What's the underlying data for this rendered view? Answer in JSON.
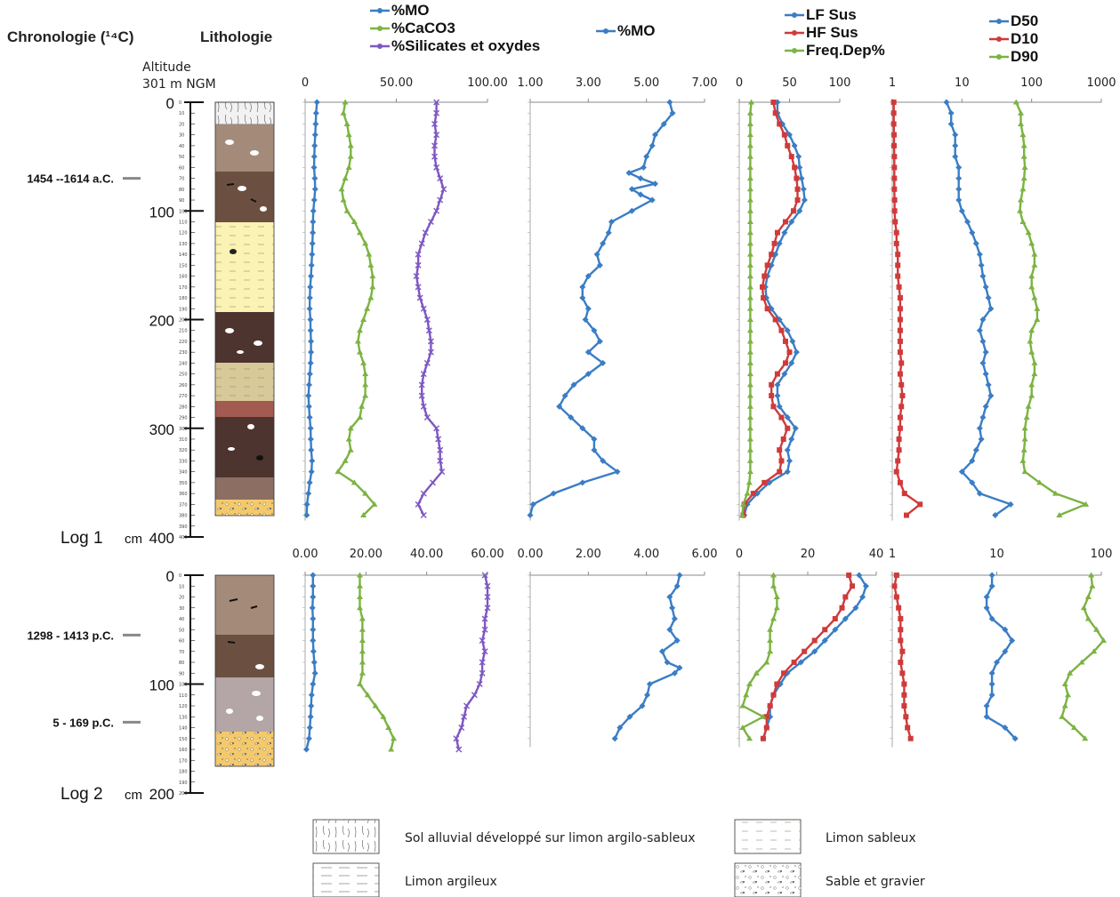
{
  "headers": {
    "chronology": "Chronologie (¹⁴C)",
    "lithology": "Lithologie",
    "altitude": "Altitude",
    "altitude_value": "301 m NGM"
  },
  "colors": {
    "blue": "#3a7dc4",
    "red": "#d03a3a",
    "green": "#7cb342",
    "purple": "#7e57c2"
  },
  "logs": [
    {
      "name": "Log 1",
      "unit": "cm",
      "max_depth": 400,
      "depth_ticks": [
        0,
        100,
        200,
        300,
        400
      ]
    },
    {
      "name": "Log 2",
      "unit": "cm",
      "max_depth": 200,
      "depth_ticks": [
        0,
        100,
        200
      ]
    }
  ],
  "dates": [
    {
      "label": "1454 --1614 a.C.",
      "log": 0,
      "depth": 70
    },
    {
      "label": "1298 - 1413 p.C.",
      "log": 1,
      "depth": 55
    },
    {
      "label": "5 - 169 p.C.",
      "log": 1,
      "depth": 135
    }
  ],
  "legend": [
    {
      "label": "Sol alluvial développé sur limon argilo-sableux",
      "pattern": "soil"
    },
    {
      "label": "Limon argileux",
      "pattern": "argileux"
    },
    {
      "label": "Limon sableux",
      "pattern": "sableux"
    },
    {
      "label": "Sable et gravier",
      "pattern": "gravier"
    }
  ],
  "chart_data": [
    {
      "type": "line",
      "log": 1,
      "panel": 1,
      "legend": [
        "%MO",
        "%CaCO3",
        "%Silicates et oxydes"
      ],
      "xlim": [
        0,
        100
      ],
      "ticks": [
        "0",
        "50.00",
        "100.00"
      ],
      "depth": [
        0,
        10,
        20,
        30,
        40,
        50,
        60,
        70,
        80,
        90,
        100,
        110,
        120,
        130,
        140,
        150,
        160,
        170,
        180,
        190,
        200,
        210,
        220,
        230,
        240,
        250,
        260,
        270,
        280,
        290,
        300,
        310,
        320,
        330,
        340,
        350,
        360,
        370,
        380
      ],
      "series": [
        {
          "name": "%MO",
          "color": "#3a7dc4",
          "values": [
            6.5,
            6,
            5.8,
            5.5,
            5.2,
            5,
            4.9,
            5.3,
            5.5,
            5,
            4.5,
            4.3,
            4.2,
            4,
            3.8,
            3.5,
            3.2,
            2.8,
            2.6,
            2.5,
            2.9,
            3,
            3.2,
            3.2,
            3,
            2.6,
            2.2,
            1.8,
            2.1,
            2.5,
            3,
            3.1,
            3.3,
            3.8,
            3.5,
            2.5,
            1.8,
            1,
            0.9
          ]
        },
        {
          "name": "%CaCO3",
          "color": "#7cb342",
          "values": [
            22,
            21,
            23,
            24,
            25,
            25,
            24,
            22,
            20,
            21,
            23,
            27,
            30,
            33,
            35,
            36,
            37,
            37,
            36,
            34,
            32,
            30,
            29,
            30,
            32,
            33,
            33,
            33,
            31,
            30,
            25,
            24,
            25,
            22,
            18,
            27,
            33,
            38,
            32
          ]
        },
        {
          "name": "%Silicates et oxydes",
          "color": "#7e57c2",
          "values": [
            72,
            72,
            71,
            72,
            71,
            71,
            72,
            74,
            76,
            74,
            72,
            69,
            66,
            64,
            62,
            62,
            61,
            62,
            63,
            65,
            67,
            68,
            69,
            69,
            67,
            65,
            64,
            64,
            65,
            67,
            72,
            73,
            74,
            74,
            75,
            70,
            65,
            62,
            65
          ]
        }
      ]
    },
    {
      "type": "line",
      "log": 1,
      "panel": 2,
      "legend": [
        "%MO"
      ],
      "xlim": [
        1,
        7
      ],
      "ticks": [
        "1.00",
        "3.00",
        "5.00",
        "7.00"
      ],
      "depth": [
        0,
        10,
        20,
        30,
        40,
        50,
        60,
        65,
        70,
        75,
        80,
        85,
        90,
        100,
        110,
        120,
        130,
        140,
        150,
        160,
        170,
        180,
        190,
        200,
        210,
        220,
        230,
        240,
        250,
        260,
        270,
        280,
        290,
        300,
        310,
        320,
        330,
        340,
        350,
        360,
        370,
        380
      ],
      "series": [
        {
          "name": "%MO",
          "color": "#3a7dc4",
          "values": [
            5.8,
            5.9,
            5.6,
            5.3,
            5.2,
            5,
            4.9,
            4.4,
            4.8,
            5.3,
            4.5,
            4.8,
            5.2,
            4.5,
            3.8,
            3.7,
            3.5,
            3.3,
            3.4,
            3,
            2.8,
            2.8,
            3,
            2.9,
            3.2,
            3.4,
            3,
            3.5,
            3,
            2.5,
            2.2,
            2,
            2.4,
            2.8,
            3.2,
            3.2,
            3.5,
            4,
            2.8,
            1.8,
            1.1,
            1
          ]
        }
      ]
    },
    {
      "type": "line",
      "log": 1,
      "panel": 3,
      "legend": [
        "LF Sus",
        "HF Sus",
        "Freq.Dep%"
      ],
      "xlim": [
        0,
        100
      ],
      "ticks": [
        "0",
        "50",
        "100"
      ],
      "depth": [
        0,
        10,
        20,
        30,
        40,
        50,
        60,
        70,
        80,
        90,
        100,
        110,
        120,
        130,
        140,
        150,
        160,
        170,
        180,
        190,
        200,
        210,
        220,
        230,
        240,
        250,
        260,
        270,
        280,
        290,
        300,
        310,
        320,
        330,
        340,
        350,
        360,
        370,
        380
      ],
      "series": [
        {
          "name": "LF Sus",
          "color": "#3a7dc4",
          "values": [
            38,
            38,
            43,
            50,
            55,
            59,
            60,
            62,
            64,
            65,
            60,
            52,
            45,
            40,
            36,
            32,
            28,
            26,
            27,
            32,
            40,
            48,
            53,
            57,
            52,
            45,
            38,
            38,
            40,
            48,
            56,
            52,
            48,
            50,
            48,
            30,
            18,
            8,
            5
          ]
        },
        {
          "name": "HF Sus",
          "color": "#d03a3a",
          "values": [
            34,
            36,
            40,
            45,
            48,
            52,
            55,
            57,
            58,
            58,
            54,
            46,
            38,
            35,
            32,
            28,
            25,
            23,
            24,
            28,
            36,
            42,
            46,
            50,
            46,
            38,
            32,
            32,
            34,
            42,
            48,
            44,
            40,
            42,
            40,
            25,
            14,
            5,
            4
          ]
        },
        {
          "name": "Freq.Dep%",
          "color": "#7cb342",
          "values": [
            12,
            11,
            11,
            11,
            11,
            11,
            11,
            11,
            11,
            11,
            11,
            11,
            11,
            11,
            11,
            11,
            11,
            11,
            11,
            11,
            11,
            11,
            11,
            11,
            11,
            11,
            11,
            11,
            11,
            11,
            11,
            11,
            11,
            11,
            11,
            10,
            8,
            4,
            3
          ]
        }
      ]
    },
    {
      "type": "line",
      "log": 1,
      "panel": 4,
      "xscale": "log",
      "legend": [
        "D50",
        "D10",
        "D90"
      ],
      "xlim": [
        1,
        1000
      ],
      "ticks": [
        "1",
        "10",
        "100",
        "1000"
      ],
      "depth": [
        0,
        10,
        20,
        30,
        40,
        50,
        60,
        70,
        80,
        90,
        100,
        110,
        120,
        130,
        140,
        150,
        160,
        170,
        180,
        190,
        200,
        210,
        220,
        230,
        240,
        250,
        260,
        270,
        280,
        290,
        300,
        310,
        320,
        330,
        340,
        350,
        360,
        370,
        380
      ],
      "series": [
        {
          "name": "D50",
          "color": "#3a7dc4",
          "values": [
            6,
            7,
            7,
            8,
            8,
            8,
            9,
            9,
            9,
            9,
            10,
            12,
            14,
            16,
            18,
            19,
            20,
            22,
            24,
            26,
            20,
            18,
            20,
            22,
            20,
            22,
            24,
            26,
            22,
            20,
            18,
            19,
            16,
            14,
            10,
            14,
            18,
            50,
            30
          ]
        },
        {
          "name": "D10",
          "color": "#d03a3a",
          "values": [
            1.05,
            1.05,
            1.05,
            1.06,
            1.06,
            1.07,
            1.07,
            1.07,
            1.07,
            1.08,
            1.08,
            1.1,
            1.15,
            1.15,
            1.2,
            1.2,
            1.2,
            1.25,
            1.3,
            1.3,
            1.3,
            1.3,
            1.3,
            1.3,
            1.35,
            1.3,
            1.35,
            1.4,
            1.35,
            1.3,
            1.3,
            1.25,
            1.25,
            1.2,
            1.15,
            1.3,
            1.5,
            2.5,
            1.6
          ]
        },
        {
          "name": "D90",
          "color": "#7cb342",
          "values": [
            60,
            70,
            70,
            75,
            78,
            78,
            80,
            78,
            75,
            70,
            68,
            75,
            90,
            100,
            110,
            110,
            100,
            100,
            110,
            120,
            120,
            100,
            95,
            100,
            110,
            110,
            100,
            100,
            90,
            85,
            80,
            80,
            78,
            75,
            80,
            130,
            220,
            600,
            250
          ]
        }
      ]
    },
    {
      "type": "line",
      "log": 2,
      "panel": 1,
      "legend": [],
      "xlim": [
        0,
        70
      ],
      "ticks": [
        "0.00",
        "20.00",
        "40.00",
        "60.00"
      ],
      "depth": [
        0,
        10,
        20,
        30,
        40,
        50,
        60,
        70,
        80,
        90,
        100,
        110,
        120,
        130,
        140,
        150,
        160
      ],
      "series": [
        {
          "name": "%MO",
          "color": "#3a7dc4",
          "values": [
            3,
            3,
            3,
            2.8,
            3,
            3,
            3,
            3.2,
            3.5,
            3.8,
            3,
            2.5,
            2.3,
            2.1,
            1.8,
            1.5,
            0.5
          ]
        },
        {
          "name": "%CaCO3",
          "color": "#7cb342",
          "values": [
            21,
            21,
            21,
            21,
            22,
            22,
            22,
            22,
            22,
            22,
            21,
            24,
            27,
            30,
            32,
            34,
            33
          ]
        },
        {
          "name": "%Silicates et oxydes",
          "color": "#7e57c2",
          "values": [
            69,
            70,
            70,
            70,
            69,
            69,
            68,
            69,
            68,
            68,
            67,
            65,
            62,
            61,
            60,
            58,
            59
          ]
        }
      ]
    },
    {
      "type": "line",
      "log": 2,
      "panel": 2,
      "legend": [],
      "xlim": [
        0,
        7
      ],
      "ticks": [
        "0.00",
        "2.00",
        "4.00",
        "6.00"
      ],
      "depth": [
        0,
        10,
        20,
        30,
        40,
        50,
        60,
        70,
        80,
        85,
        90,
        100,
        110,
        120,
        130,
        140,
        150
      ],
      "series": [
        {
          "name": "%MO",
          "color": "#3a7dc4",
          "values": [
            6,
            5.9,
            5.6,
            5.7,
            5.8,
            5.6,
            5.9,
            5.3,
            5.5,
            6,
            5.8,
            4.8,
            4.7,
            4.5,
            4,
            3.6,
            3.4
          ]
        }
      ]
    },
    {
      "type": "line",
      "log": 2,
      "panel": 3,
      "legend": [],
      "xlim": [
        0,
        40
      ],
      "ticks": [
        "0",
        "20",
        "40"
      ],
      "depth": [
        0,
        10,
        20,
        30,
        40,
        50,
        60,
        70,
        80,
        90,
        100,
        110,
        120,
        130,
        140,
        150
      ],
      "series": [
        {
          "name": "LF Sus",
          "color": "#3a7dc4",
          "values": [
            35,
            37,
            36,
            34,
            31,
            28,
            25,
            22,
            18,
            14,
            12,
            10,
            9,
            9,
            8,
            7
          ]
        },
        {
          "name": "HF Sus",
          "color": "#d03a3a",
          "values": [
            32,
            33,
            31,
            30,
            28,
            25,
            22,
            19,
            16,
            13,
            11,
            10,
            9,
            8,
            8,
            7
          ]
        },
        {
          "name": "Freq.Dep%",
          "color": "#7cb342",
          "values": [
            10,
            10,
            11,
            11,
            10,
            9,
            9,
            9,
            8,
            5,
            3,
            2,
            1,
            7,
            1,
            3
          ]
        }
      ]
    },
    {
      "type": "line",
      "log": 2,
      "panel": 4,
      "xscale": "log",
      "legend": [],
      "xlim": [
        1,
        100
      ],
      "ticks": [
        "1",
        "10",
        "100"
      ],
      "depth": [
        0,
        10,
        20,
        30,
        40,
        50,
        60,
        70,
        80,
        90,
        100,
        110,
        120,
        130,
        140,
        150
      ],
      "series": [
        {
          "name": "D50",
          "color": "#3a7dc4",
          "values": [
            9,
            9,
            8,
            8,
            9,
            12,
            14,
            12,
            10,
            9,
            9,
            9,
            8,
            8,
            12,
            15
          ]
        },
        {
          "name": "D10",
          "color": "#d03a3a",
          "values": [
            1.1,
            1.05,
            1.1,
            1.15,
            1.2,
            1.2,
            1.2,
            1.25,
            1.2,
            1.25,
            1.3,
            1.3,
            1.3,
            1.35,
            1.4,
            1.5
          ]
        },
        {
          "name": "D90",
          "color": "#7cb342",
          "values": [
            80,
            82,
            75,
            68,
            75,
            90,
            105,
            85,
            65,
            50,
            45,
            48,
            45,
            42,
            55,
            70
          ]
        }
      ]
    }
  ]
}
